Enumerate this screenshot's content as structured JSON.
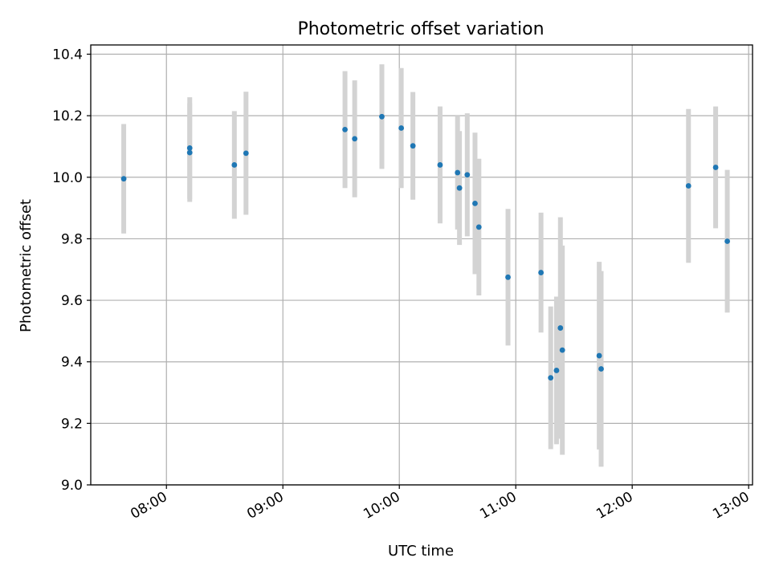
{
  "chart_data": {
    "type": "scatter",
    "title": "Photometric offset variation",
    "xlabel": "UTC time",
    "ylabel": "Photometric offset",
    "xlim": [
      "07:21",
      "13:02"
    ],
    "ylim": [
      9.0,
      10.43
    ],
    "x_ticks": [
      "08:00",
      "09:00",
      "10:00",
      "11:00",
      "12:00",
      "13:00"
    ],
    "y_ticks": [
      9.0,
      9.2,
      9.4,
      9.6,
      9.8,
      10.0,
      10.2,
      10.4
    ],
    "y_tick_labels": [
      "9.0",
      "9.2",
      "9.4",
      "9.6",
      "9.8",
      "10.0",
      "10.2",
      "10.4"
    ],
    "grid": true,
    "marker_color": "#1f77b4",
    "errorbar_color": "#d3d3d3",
    "points": [
      {
        "x": "07:38",
        "y": 9.995,
        "err": 0.178
      },
      {
        "x": "08:12",
        "y": 10.08,
        "err": 0.16
      },
      {
        "x": "08:12",
        "y": 10.095,
        "err": 0.165
      },
      {
        "x": "08:35",
        "y": 10.04,
        "err": 0.175
      },
      {
        "x": "08:41",
        "y": 10.078,
        "err": 0.2
      },
      {
        "x": "09:32",
        "y": 10.155,
        "err": 0.19
      },
      {
        "x": "09:37",
        "y": 10.125,
        "err": 0.19
      },
      {
        "x": "09:51",
        "y": 10.197,
        "err": 0.17
      },
      {
        "x": "10:01",
        "y": 10.16,
        "err": 0.195
      },
      {
        "x": "10:07",
        "y": 10.102,
        "err": 0.175
      },
      {
        "x": "10:21",
        "y": 10.04,
        "err": 0.19
      },
      {
        "x": "10:30",
        "y": 10.015,
        "err": 0.185
      },
      {
        "x": "10:31",
        "y": 9.965,
        "err": 0.185
      },
      {
        "x": "10:35",
        "y": 10.008,
        "err": 0.2
      },
      {
        "x": "10:39",
        "y": 9.915,
        "err": 0.23
      },
      {
        "x": "10:41",
        "y": 9.838,
        "err": 0.222
      },
      {
        "x": "10:56",
        "y": 9.675,
        "err": 0.222
      },
      {
        "x": "11:13",
        "y": 9.69,
        "err": 0.195
      },
      {
        "x": "11:18",
        "y": 9.348,
        "err": 0.232
      },
      {
        "x": "11:21",
        "y": 9.372,
        "err": 0.24
      },
      {
        "x": "11:23",
        "y": 9.51,
        "err": 0.36
      },
      {
        "x": "11:24",
        "y": 9.438,
        "err": 0.34
      },
      {
        "x": "11:43",
        "y": 9.42,
        "err": 0.305
      },
      {
        "x": "11:44",
        "y": 9.377,
        "err": 0.318
      },
      {
        "x": "12:29",
        "y": 9.972,
        "err": 0.25
      },
      {
        "x": "12:43",
        "y": 10.032,
        "err": 0.198
      },
      {
        "x": "12:49",
        "y": 9.792,
        "err": 0.232
      }
    ]
  }
}
